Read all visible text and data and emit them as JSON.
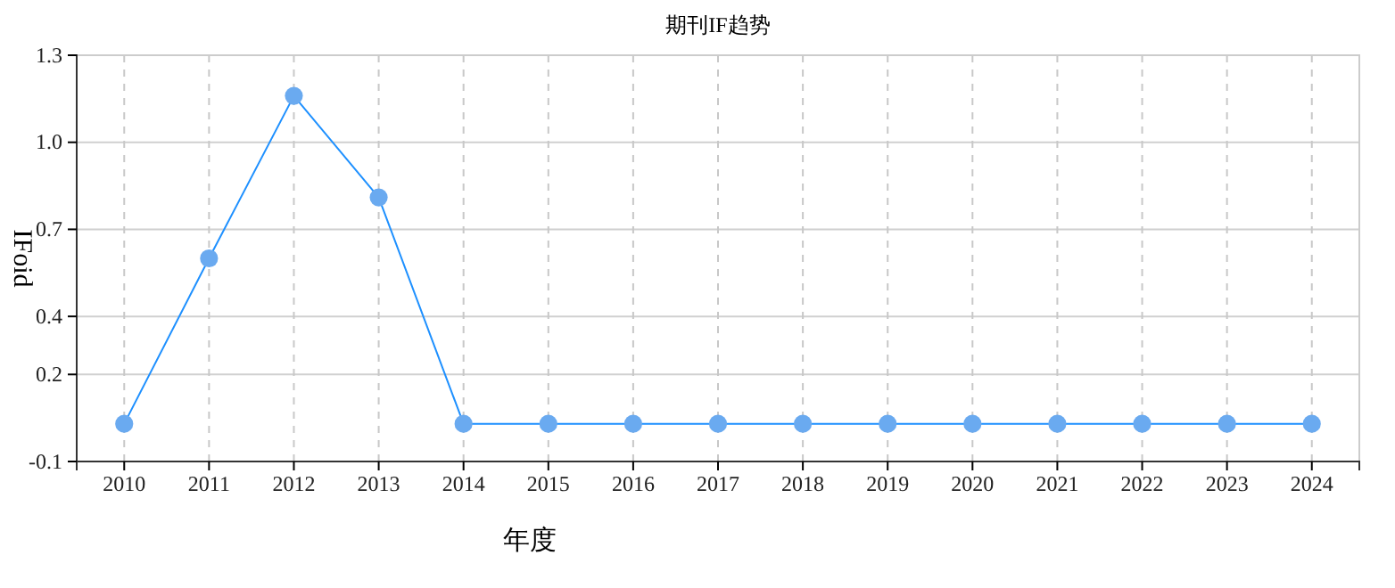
{
  "chart_data": {
    "type": "line",
    "title": "期刊IF趋势",
    "xlabel": "年度",
    "ylabel": "IFoid",
    "categories": [
      "2010",
      "2011",
      "2012",
      "2013",
      "2014",
      "2015",
      "2016",
      "2017",
      "2018",
      "2019",
      "2020",
      "2021",
      "2022",
      "2023",
      "2024"
    ],
    "series": [
      {
        "color": "#1e90ff",
        "values": [
          0.03,
          0.6,
          1.16,
          0.81,
          0.03,
          0.03,
          0.03,
          0.03,
          0.03,
          0.03,
          0.03,
          0.03,
          0.03,
          0.03,
          0.03
        ]
      }
    ],
    "ylim": [
      -0.1,
      1.3
    ],
    "yticks": [
      -0.1,
      0.2,
      0.4,
      0.7,
      {
        "value": 1.0,
        "label": "1.0"
      },
      1.3
    ],
    "grid": true,
    "marker": "circle",
    "line_style": "solid"
  }
}
